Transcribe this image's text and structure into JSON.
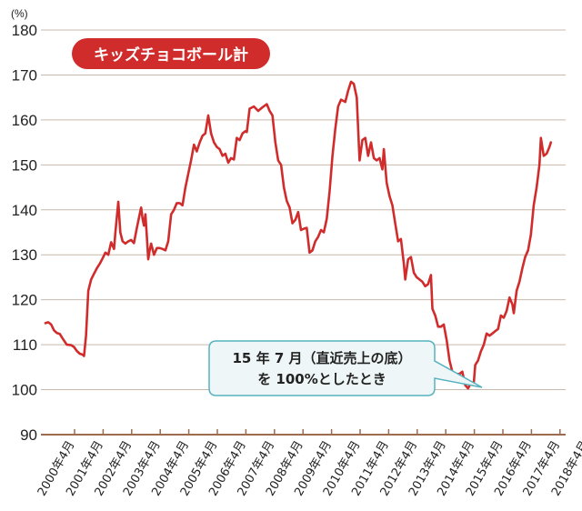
{
  "chart_data": {
    "type": "line",
    "unit_label": "(%)",
    "series": [
      {
        "name": "キッズチョコボール計",
        "color": "#d12c2c",
        "points": [
          [
            0.0,
            114.8
          ],
          [
            0.1,
            115.0
          ],
          [
            0.2,
            114.5
          ],
          [
            0.3,
            113.2
          ],
          [
            0.4,
            112.6
          ],
          [
            0.5,
            112.4
          ],
          [
            0.6,
            111.4
          ],
          [
            0.75,
            110.0
          ],
          [
            0.9,
            109.9
          ],
          [
            1.0,
            109.5
          ],
          [
            1.1,
            108.6
          ],
          [
            1.2,
            108.0
          ],
          [
            1.3,
            107.8
          ],
          [
            1.35,
            107.5
          ],
          [
            1.42,
            112.0
          ],
          [
            1.5,
            122.0
          ],
          [
            1.6,
            124.5
          ],
          [
            1.7,
            125.8
          ],
          [
            1.8,
            127.0
          ],
          [
            1.9,
            128.0
          ],
          [
            2.0,
            129.2
          ],
          [
            2.1,
            130.5
          ],
          [
            2.2,
            130.0
          ],
          [
            2.3,
            132.8
          ],
          [
            2.4,
            131.3
          ],
          [
            2.45,
            135.0
          ],
          [
            2.55,
            141.8
          ],
          [
            2.62,
            135.0
          ],
          [
            2.7,
            133.0
          ],
          [
            2.8,
            132.5
          ],
          [
            2.9,
            133.0
          ],
          [
            3.0,
            133.3
          ],
          [
            3.1,
            132.6
          ],
          [
            3.2,
            136.0
          ],
          [
            3.3,
            139.0
          ],
          [
            3.35,
            140.5
          ],
          [
            3.4,
            138.0
          ],
          [
            3.45,
            136.5
          ],
          [
            3.5,
            139.0
          ],
          [
            3.55,
            134.0
          ],
          [
            3.6,
            129.0
          ],
          [
            3.65,
            131.0
          ],
          [
            3.7,
            132.5
          ],
          [
            3.8,
            130.0
          ],
          [
            3.9,
            131.5
          ],
          [
            4.0,
            131.5
          ],
          [
            4.1,
            131.3
          ],
          [
            4.2,
            131.0
          ],
          [
            4.3,
            133.0
          ],
          [
            4.4,
            139.0
          ],
          [
            4.5,
            140.0
          ],
          [
            4.6,
            141.5
          ],
          [
            4.7,
            141.5
          ],
          [
            4.8,
            141.0
          ],
          [
            4.9,
            145.0
          ],
          [
            5.0,
            148.0
          ],
          [
            5.1,
            151.0
          ],
          [
            5.2,
            154.5
          ],
          [
            5.3,
            153.0
          ],
          [
            5.4,
            155.0
          ],
          [
            5.5,
            156.5
          ],
          [
            5.6,
            157.0
          ],
          [
            5.7,
            161.0
          ],
          [
            5.8,
            157.0
          ],
          [
            5.9,
            155.0
          ],
          [
            6.0,
            154.0
          ],
          [
            6.1,
            153.5
          ],
          [
            6.2,
            152.0
          ],
          [
            6.3,
            152.5
          ],
          [
            6.4,
            150.5
          ],
          [
            6.5,
            151.5
          ],
          [
            6.6,
            151.2
          ],
          [
            6.7,
            156.0
          ],
          [
            6.8,
            155.5
          ],
          [
            6.9,
            157.0
          ],
          [
            7.0,
            157.5
          ],
          [
            7.05,
            157.3
          ],
          [
            7.15,
            162.5
          ],
          [
            7.3,
            163.0
          ],
          [
            7.45,
            162.0
          ],
          [
            7.6,
            162.8
          ],
          [
            7.75,
            163.5
          ],
          [
            7.85,
            162.0
          ],
          [
            7.95,
            161.0
          ],
          [
            8.05,
            155.0
          ],
          [
            8.15,
            151.0
          ],
          [
            8.25,
            150.0
          ],
          [
            8.35,
            145.0
          ],
          [
            8.45,
            142.0
          ],
          [
            8.55,
            140.5
          ],
          [
            8.65,
            137.0
          ],
          [
            8.75,
            137.8
          ],
          [
            8.85,
            139.5
          ],
          [
            8.95,
            135.5
          ],
          [
            9.05,
            135.8
          ],
          [
            9.15,
            136.0
          ],
          [
            9.25,
            130.5
          ],
          [
            9.35,
            131.0
          ],
          [
            9.45,
            133.0
          ],
          [
            9.55,
            134.0
          ],
          [
            9.65,
            135.5
          ],
          [
            9.75,
            135.0
          ],
          [
            9.85,
            138.0
          ],
          [
            9.95,
            144.0
          ],
          [
            10.05,
            152.0
          ],
          [
            10.15,
            158.0
          ],
          [
            10.25,
            163.0
          ],
          [
            10.35,
            164.5
          ],
          [
            10.5,
            164.0
          ],
          [
            10.6,
            166.5
          ],
          [
            10.7,
            168.5
          ],
          [
            10.8,
            168.0
          ],
          [
            10.9,
            165.0
          ],
          [
            11.0,
            151.0
          ],
          [
            11.1,
            155.5
          ],
          [
            11.2,
            156.0
          ],
          [
            11.3,
            152.0
          ],
          [
            11.4,
            155.0
          ],
          [
            11.5,
            151.5
          ],
          [
            11.6,
            151.0
          ],
          [
            11.7,
            151.5
          ],
          [
            11.8,
            149.0
          ],
          [
            11.85,
            153.5
          ],
          [
            11.95,
            146.0
          ],
          [
            12.05,
            143.0
          ],
          [
            12.15,
            141.0
          ],
          [
            12.25,
            137.0
          ],
          [
            12.35,
            133.0
          ],
          [
            12.45,
            133.5
          ],
          [
            12.55,
            128.0
          ],
          [
            12.6,
            124.5
          ],
          [
            12.7,
            129.0
          ],
          [
            12.8,
            129.5
          ],
          [
            12.9,
            126.0
          ],
          [
            13.0,
            125.0
          ],
          [
            13.1,
            124.5
          ],
          [
            13.2,
            124.0
          ],
          [
            13.3,
            123.0
          ],
          [
            13.4,
            123.5
          ],
          [
            13.5,
            125.5
          ],
          [
            13.55,
            118.0
          ],
          [
            13.65,
            116.5
          ],
          [
            13.75,
            114.0
          ],
          [
            13.85,
            114.0
          ],
          [
            13.95,
            114.5
          ],
          [
            14.05,
            111.0
          ],
          [
            14.15,
            106.5
          ],
          [
            14.25,
            104.0
          ],
          [
            14.35,
            103.5
          ],
          [
            14.5,
            103.5
          ],
          [
            14.6,
            104.0
          ],
          [
            14.7,
            101.0
          ],
          [
            14.8,
            100.3
          ],
          [
            14.9,
            101.5
          ],
          [
            15.0,
            101.5
          ],
          [
            15.05,
            105.5
          ],
          [
            15.15,
            106.5
          ],
          [
            15.25,
            108.5
          ],
          [
            15.35,
            110.0
          ],
          [
            15.45,
            112.5
          ],
          [
            15.55,
            112.0
          ],
          [
            15.65,
            112.5
          ],
          [
            15.75,
            113.0
          ],
          [
            15.85,
            113.5
          ],
          [
            15.95,
            116.5
          ],
          [
            16.05,
            116.0
          ],
          [
            16.15,
            117.5
          ],
          [
            16.25,
            120.5
          ],
          [
            16.35,
            119.0
          ],
          [
            16.4,
            117.0
          ],
          [
            16.5,
            122.0
          ],
          [
            16.6,
            124.0
          ],
          [
            16.7,
            127.0
          ],
          [
            16.8,
            129.5
          ],
          [
            16.9,
            131.0
          ],
          [
            17.0,
            134.5
          ],
          [
            17.1,
            141.0
          ],
          [
            17.2,
            145.0
          ],
          [
            17.3,
            150.0
          ],
          [
            17.35,
            156.0
          ],
          [
            17.45,
            152.0
          ],
          [
            17.55,
            152.5
          ],
          [
            17.65,
            154.0
          ],
          [
            17.7,
            155.0
          ]
        ]
      }
    ],
    "x_labels": [
      "2000年4月",
      "2001年4月",
      "2002年4月",
      "2003年4月",
      "2004年4月",
      "2005年4月",
      "2006年4月",
      "2007年4月",
      "2008年4月",
      "2009年4月",
      "2010年4月",
      "2011年4月",
      "2012年4月",
      "2013年4月",
      "2014年4月",
      "2015年4月",
      "2016年4月",
      "2017年4月",
      "2018年4月"
    ],
    "y_ticks": [
      90,
      100,
      110,
      120,
      130,
      140,
      150,
      160,
      170,
      180
    ],
    "ylim": [
      90,
      180
    ],
    "grid": true,
    "legend_badge": "キッズチョコボール計",
    "annotation": {
      "lines": [
        "15 年 7 月（直近売上の底）",
        "を 100%としたとき"
      ],
      "point": [
        14.8,
        100.3
      ]
    }
  }
}
